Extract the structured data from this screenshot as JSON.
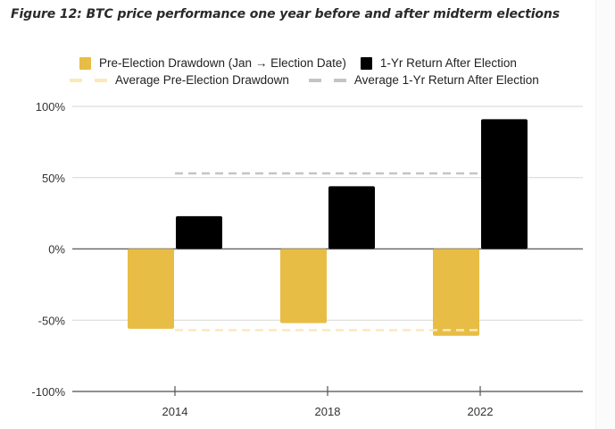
{
  "figure": {
    "title": "Figure 12: BTC price performance one year before and after midterm elections"
  },
  "legend": {
    "position": "top-center",
    "items": [
      {
        "label": "Pre-Election Drawdown (Jan → Election Date)",
        "type": "bar",
        "color": "#E8BD45"
      },
      {
        "label": "1-Yr Return After Election",
        "type": "bar",
        "color": "#000000"
      },
      {
        "label": "Average Pre-Election Drawdown",
        "type": "dashed-line",
        "color": "#FBE9B8"
      },
      {
        "label": "Average 1-Yr Return After Election",
        "type": "dashed-line",
        "color": "#C4C4C4"
      }
    ]
  },
  "chart_data": {
    "type": "bar",
    "title": "BTC price performance one year before and after midterm elections",
    "xlabel": "",
    "ylabel": "",
    "categories": [
      "2014",
      "2018",
      "2022"
    ],
    "series": [
      {
        "name": "Pre-Election Drawdown (Jan → Election Date)",
        "color": "#E8BD45",
        "values": [
          -56,
          -52,
          -61
        ]
      },
      {
        "name": "1-Yr Return After Election",
        "color": "#000000",
        "values": [
          23,
          44,
          91
        ]
      }
    ],
    "reference_lines": [
      {
        "name": "Average Pre-Election Drawdown",
        "color": "#FBE9B8",
        "style": "dashed",
        "value": -57
      },
      {
        "name": "Average 1-Yr Return After Election",
        "color": "#C4C4C4",
        "style": "dashed",
        "value": 53
      }
    ],
    "ylim": [
      -100,
      100
    ],
    "yticks": [
      100,
      50,
      0,
      -50,
      -100
    ],
    "ytick_labels": [
      "100%",
      "50%",
      "0%",
      "-50%",
      "-100%"
    ],
    "grid": true,
    "legend_position": "top-center"
  }
}
